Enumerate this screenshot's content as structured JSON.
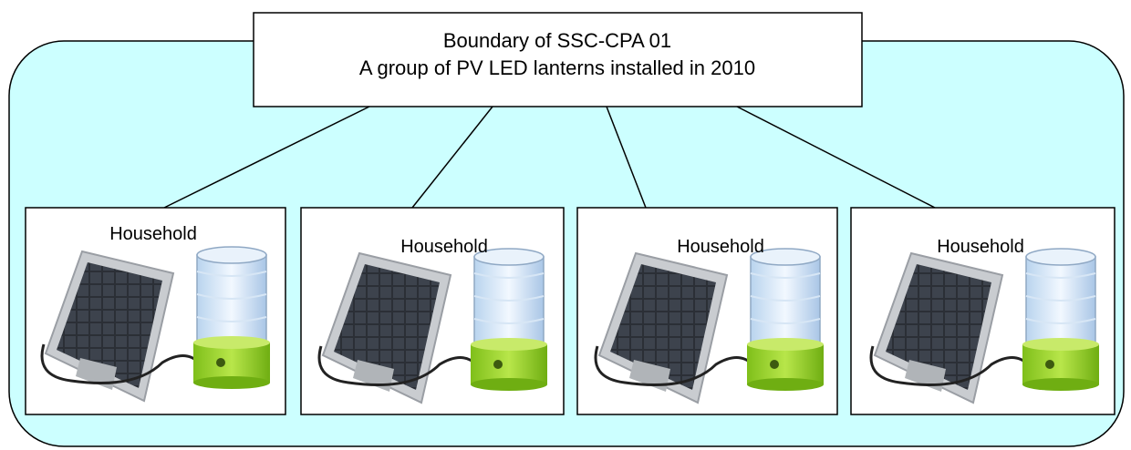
{
  "header": {
    "line1": "Boundary of SSC-CPA 01",
    "line2": "A group of PV LED lanterns installed in 2010"
  },
  "nodes": [
    {
      "label": "Household"
    },
    {
      "label": "Household"
    },
    {
      "label": "Household"
    },
    {
      "label": "Household"
    }
  ]
}
